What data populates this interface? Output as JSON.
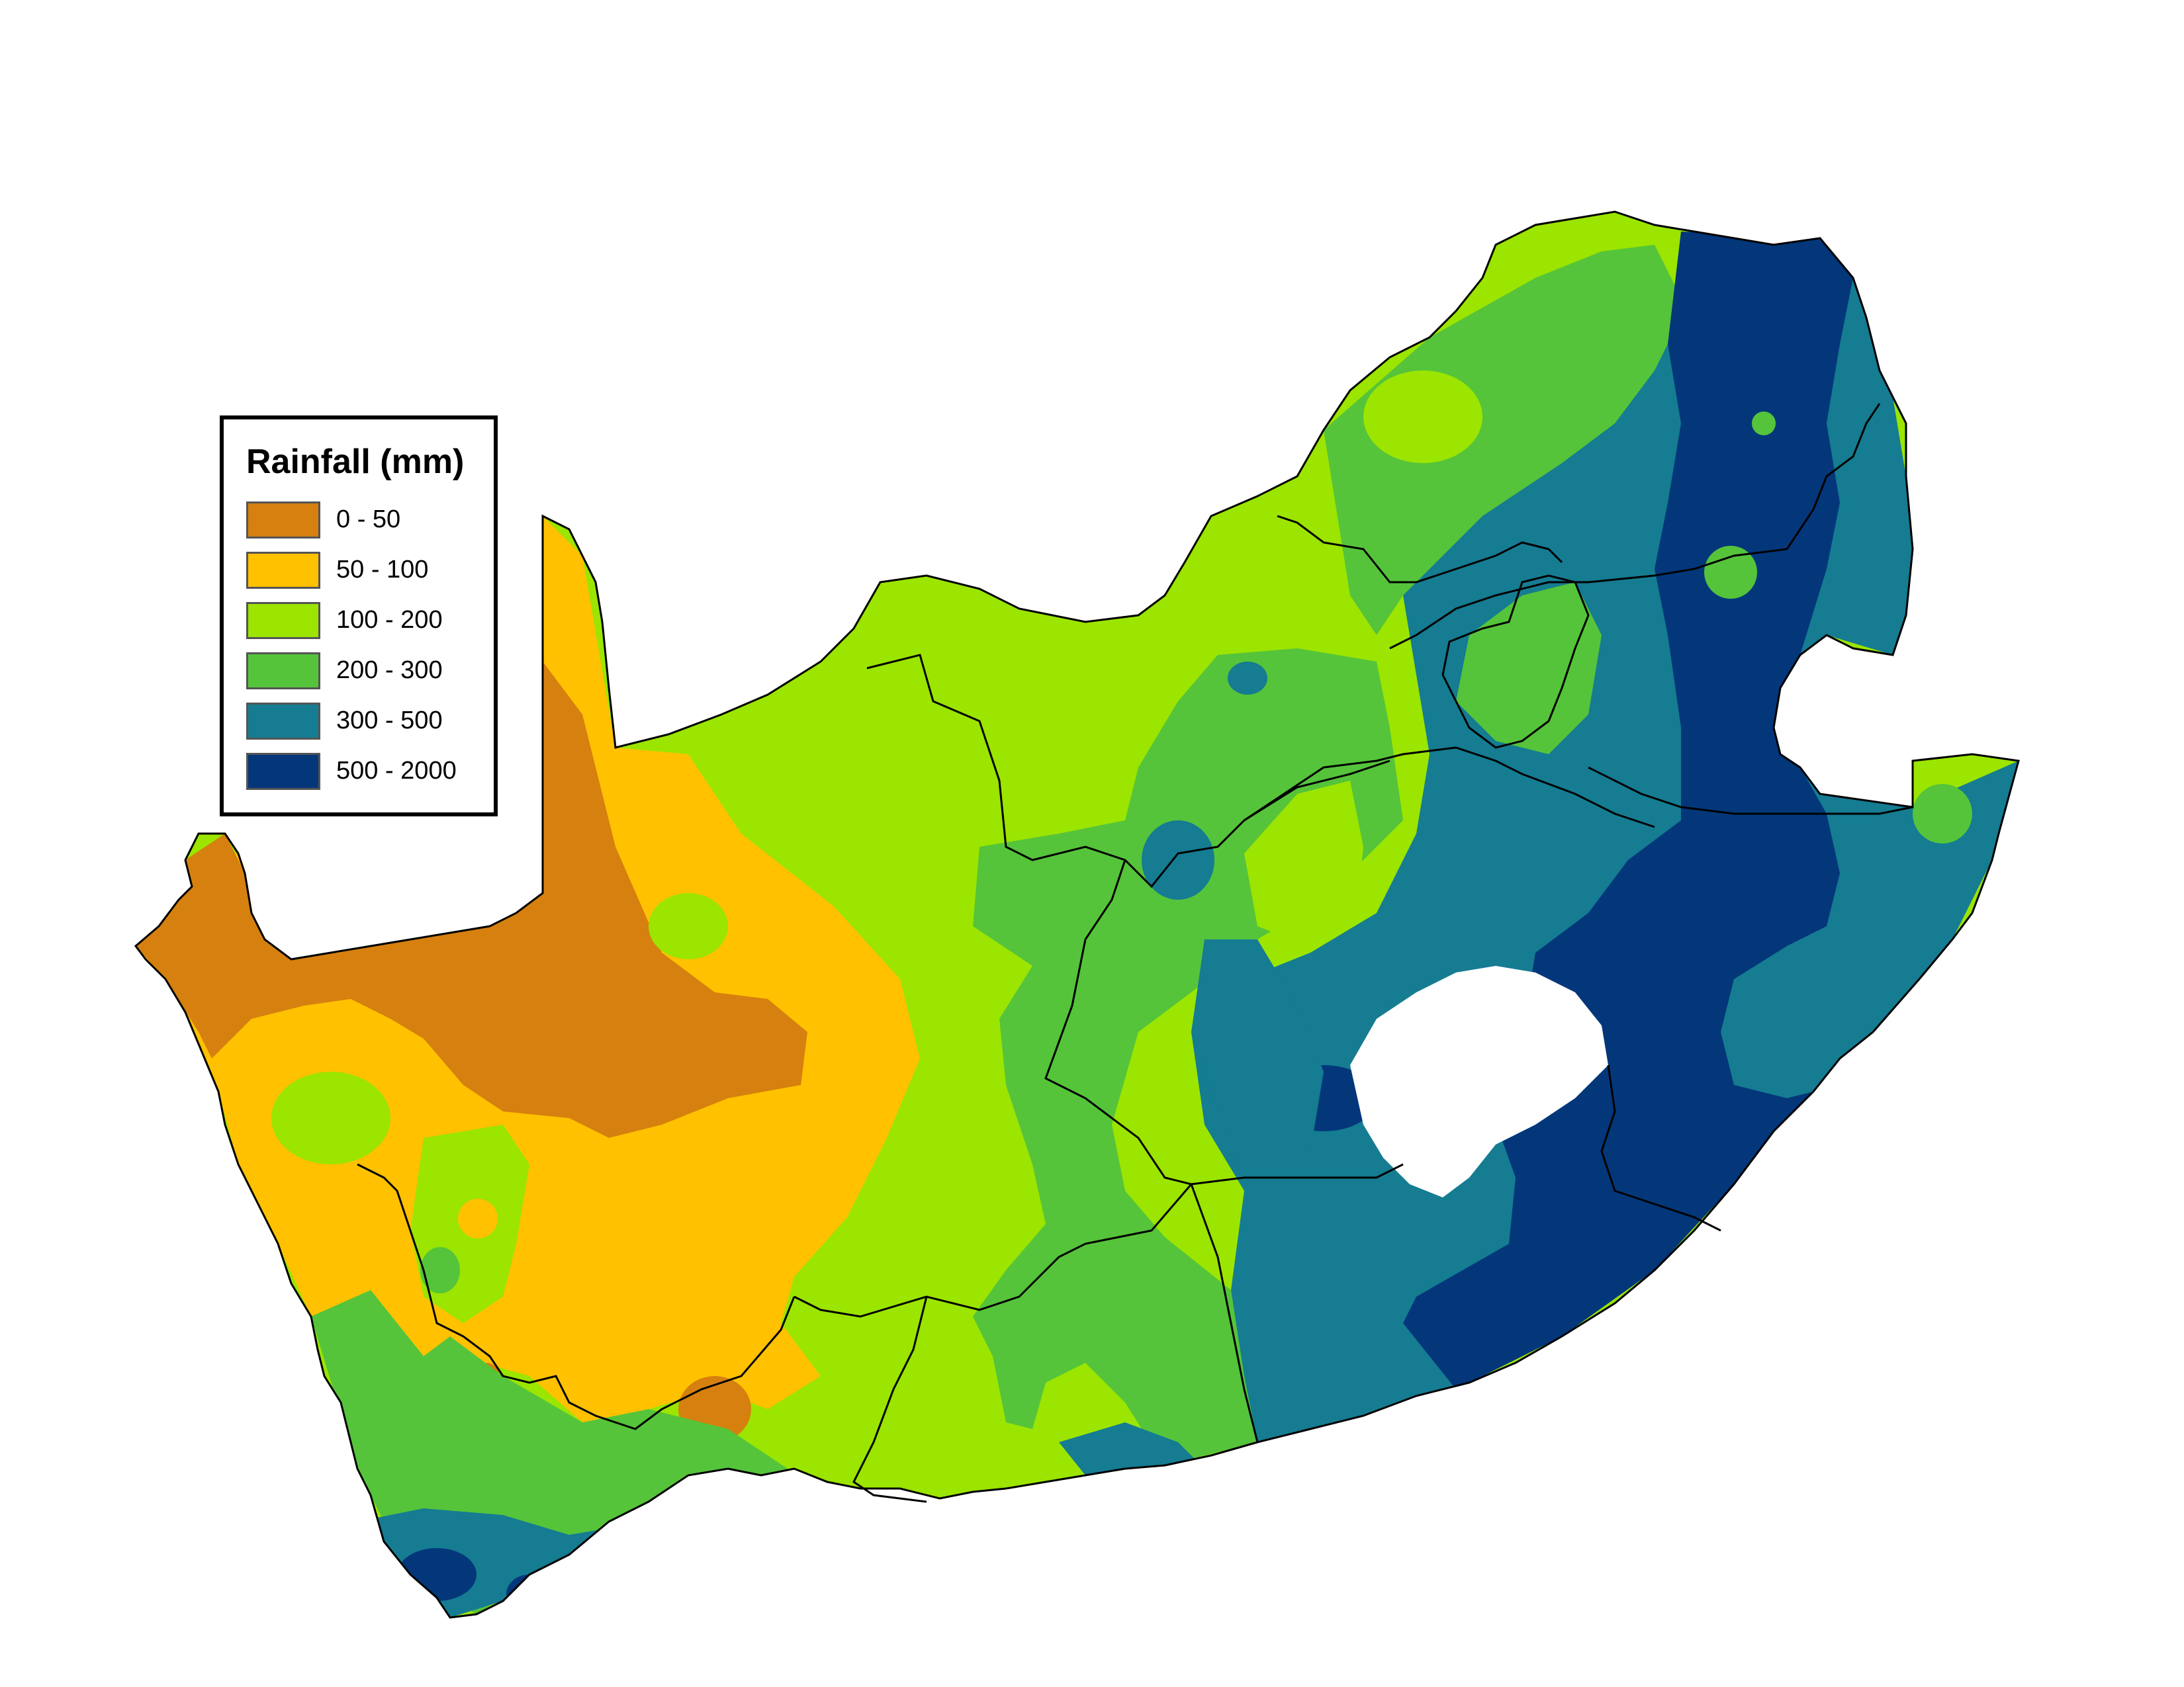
{
  "legend": {
    "title": "Rainfall (mm)",
    "classes": [
      {
        "label": "0 - 50",
        "color": "#d6800f"
      },
      {
        "label": "50 - 100",
        "color": "#ffc100"
      },
      {
        "label": "100 - 200",
        "color": "#9be500"
      },
      {
        "label": "200 - 300",
        "color": "#55c43a"
      },
      {
        "label": "300 - 500",
        "color": "#157c92"
      },
      {
        "label": "500 - 2000",
        "color": "#03377a"
      }
    ]
  },
  "colors": {
    "background": "#ffffff",
    "boundary": "#000000"
  }
}
